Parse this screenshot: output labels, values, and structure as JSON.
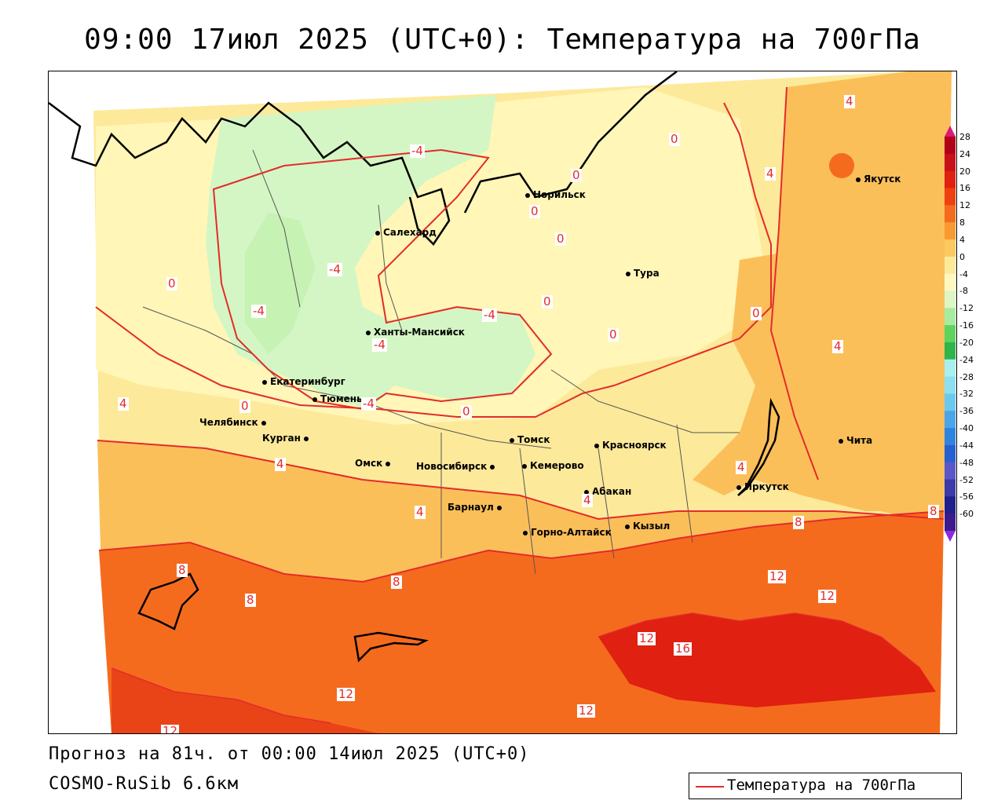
{
  "title": "09:00 17июл 2025 (UTC+0): Температура на 700гПа",
  "footer": {
    "forecast": "Прогноз на 81ч. от 00:00 14июл 2025 (UTC+0)",
    "model": "COSMO-RuSib 6.6км"
  },
  "legend": {
    "label": "Температура на 700гПа",
    "line_color": "#e32b2b"
  },
  "colorbar": {
    "ticks": [
      "28",
      "24",
      "20",
      "16",
      "12",
      "8",
      "4",
      "0",
      "-4",
      "-8",
      "-12",
      "-16",
      "-20",
      "-24",
      "-28",
      "-32",
      "-36",
      "-40",
      "-44",
      "-48",
      "-52",
      "-56",
      "-60"
    ],
    "colors": [
      "#b0001a",
      "#c8101a",
      "#e02010",
      "#ee4010",
      "#f56b1e",
      "#f89a30",
      "#fcc860",
      "#fde99a",
      "#fff8c0",
      "#dcf7c4",
      "#a6eca0",
      "#5ed45e",
      "#2fb54a",
      "#a8f0f0",
      "#8ee0f0",
      "#6cc8ee",
      "#4aa6e8",
      "#2f84e0",
      "#2660d0",
      "#5a58c8",
      "#3a3aa8",
      "#20208c",
      "#3c1a8c"
    ]
  },
  "cities": [
    {
      "name": "Норильск"
    },
    {
      "name": "Салехард"
    },
    {
      "name": "Тура"
    },
    {
      "name": "Якутск"
    },
    {
      "name": "Ханты-Мансийск"
    },
    {
      "name": "Екатеринбург"
    },
    {
      "name": "Тюмень"
    },
    {
      "name": "Челябинск"
    },
    {
      "name": "Курган"
    },
    {
      "name": "Омск"
    },
    {
      "name": "Новосибирск"
    },
    {
      "name": "Томск"
    },
    {
      "name": "Кемерово"
    },
    {
      "name": "Красноярск"
    },
    {
      "name": "Барнаул"
    },
    {
      "name": "Абакан"
    },
    {
      "name": "Иркутск"
    },
    {
      "name": "Чита"
    },
    {
      "name": "Горно-Алтайск"
    },
    {
      "name": "Кызыл"
    }
  ],
  "contour_labels": [
    "4",
    "0",
    "4",
    "-4",
    "0",
    "0",
    "0",
    "0",
    "-4",
    "-4",
    "-4",
    "0",
    "0",
    "-4",
    "4",
    "0",
    "0",
    "-4",
    "0",
    "4",
    "4",
    "4",
    "4",
    "4",
    "8",
    "8",
    "8",
    "8",
    "8",
    "12",
    "12",
    "12",
    "16",
    "12",
    "12",
    "12"
  ]
}
